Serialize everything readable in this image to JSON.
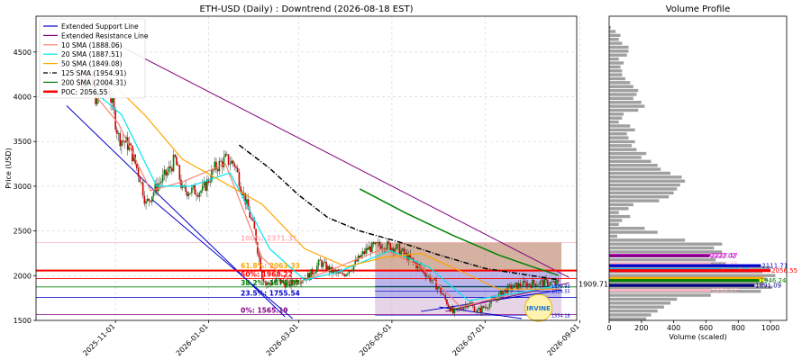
{
  "chart_data": [
    {
      "type": "candlestick",
      "title": "ETH-USD (Daily) : Downtrend (2026-08-18 EST)",
      "ylabel": "Price (USD)",
      "xlabel": "",
      "ylim": [
        1500,
        4900
      ],
      "xlim": [
        "2025-09-10",
        "2026-08-30"
      ],
      "grid": true,
      "yticks": [
        1500,
        2000,
        2500,
        3000,
        3500,
        4000,
        4500
      ],
      "xticks": [
        {
          "date": "2025-11-01",
          "label": "2025-11-01"
        },
        {
          "date": "2026-01-01",
          "label": "2026-01-01"
        },
        {
          "date": "2026-03-01",
          "label": "2026-03-01"
        },
        {
          "date": "2026-05-01",
          "label": "2026-05-01"
        },
        {
          "date": "2026-07-01",
          "label": "2026-07-01"
        },
        {
          "date": "2026-09-01",
          "label": "2026-09-01"
        }
      ],
      "legend_position": "top-left",
      "legend": [
        {
          "label": "Extended Support Line",
          "color": "#0000cc",
          "style": "solid"
        },
        {
          "label": "Extended Resistance Line",
          "color": "#800080",
          "style": "solid"
        },
        {
          "label": "10 SMA (1888.06)",
          "color": "#fa8072",
          "style": "solid"
        },
        {
          "label": "20 SMA (1887.51)",
          "color": "#00e5ee",
          "style": "solid"
        },
        {
          "label": "50 SMA (1849.08)",
          "color": "#ffa500",
          "style": "solid"
        },
        {
          "label": "125 SMA (1954.91)",
          "color": "#000000",
          "style": "dashdot"
        },
        {
          "label": "200 SMA (2004.31)",
          "color": "#008000",
          "style": "solid"
        },
        {
          "label": "POC: 2056.55",
          "color": "#ff0000",
          "style": "thick"
        }
      ],
      "price_path": [
        [
          "2025-10-05",
          4350
        ],
        [
          "2025-10-10",
          4150
        ],
        [
          "2025-10-14",
          4250
        ],
        [
          "2025-10-20",
          3950
        ],
        [
          "2025-10-27",
          4150
        ],
        [
          "2025-11-03",
          3550
        ],
        [
          "2025-11-10",
          3450
        ],
        [
          "2025-11-17",
          3100
        ],
        [
          "2025-11-21",
          2800
        ],
        [
          "2025-11-28",
          3000
        ],
        [
          "2025-12-05",
          3150
        ],
        [
          "2025-12-10",
          3300
        ],
        [
          "2025-12-15",
          2950
        ],
        [
          "2025-12-22",
          2950
        ],
        [
          "2025-12-28",
          2950
        ],
        [
          "2026-01-05",
          3200
        ],
        [
          "2026-01-12",
          3300
        ],
        [
          "2026-01-18",
          3250
        ],
        [
          "2026-01-24",
          2900
        ],
        [
          "2026-01-31",
          2500
        ],
        [
          "2026-02-05",
          2000
        ],
        [
          "2026-02-08",
          1900
        ],
        [
          "2026-02-15",
          1950
        ],
        [
          "2026-02-22",
          1900
        ],
        [
          "2026-02-28",
          1950
        ],
        [
          "2026-03-08",
          2000
        ],
        [
          "2026-03-15",
          2150
        ],
        [
          "2026-03-22",
          2050
        ],
        [
          "2026-03-29",
          2000
        ],
        [
          "2026-04-05",
          2100
        ],
        [
          "2026-04-15",
          2300
        ],
        [
          "2026-04-25",
          2350
        ],
        [
          "2026-05-05",
          2300
        ],
        [
          "2026-05-15",
          2150
        ],
        [
          "2026-05-22",
          2050
        ],
        [
          "2026-06-01",
          1850
        ],
        [
          "2026-06-10",
          1580
        ],
        [
          "2026-06-20",
          1700
        ],
        [
          "2026-06-26",
          1600
        ],
        [
          "2026-07-05",
          1700
        ],
        [
          "2026-07-15",
          1850
        ],
        [
          "2026-07-25",
          1900
        ],
        [
          "2026-08-05",
          1920
        ],
        [
          "2026-08-18",
          1910
        ]
      ],
      "sma_paths": {
        "sma10": [
          [
            "2025-10-05",
            4300
          ],
          [
            "2025-11-03",
            3700
          ],
          [
            "2025-11-24",
            2950
          ],
          [
            "2025-12-15",
            3050
          ],
          [
            "2026-01-12",
            3250
          ],
          [
            "2026-02-05",
            2200
          ],
          [
            "2026-02-25",
            1900
          ],
          [
            "2026-03-20",
            2050
          ],
          [
            "2026-04-25",
            2300
          ],
          [
            "2026-05-20",
            2100
          ],
          [
            "2026-06-15",
            1650
          ],
          [
            "2026-07-15",
            1780
          ],
          [
            "2026-08-18",
            1888
          ]
        ],
        "sma20": [
          [
            "2025-10-05",
            4250
          ],
          [
            "2025-11-05",
            3800
          ],
          [
            "2025-11-28",
            3000
          ],
          [
            "2025-12-20",
            3000
          ],
          [
            "2026-01-15",
            3150
          ],
          [
            "2026-02-10",
            2300
          ],
          [
            "2026-03-05",
            1950
          ],
          [
            "2026-03-28",
            2050
          ],
          [
            "2026-04-30",
            2280
          ],
          [
            "2026-05-25",
            2100
          ],
          [
            "2026-06-20",
            1720
          ],
          [
            "2026-07-20",
            1800
          ],
          [
            "2026-08-18",
            1887
          ]
        ],
        "sma50": [
          [
            "2025-10-30",
            4150
          ],
          [
            "2025-11-20",
            3800
          ],
          [
            "2025-12-15",
            3300
          ],
          [
            "2026-01-10",
            3050
          ],
          [
            "2026-02-05",
            2800
          ],
          [
            "2026-03-05",
            2300
          ],
          [
            "2026-04-01",
            2100
          ],
          [
            "2026-04-25",
            2200
          ],
          [
            "2026-05-20",
            2250
          ],
          [
            "2026-06-15",
            2050
          ],
          [
            "2026-07-10",
            1850
          ],
          [
            "2026-08-18",
            1849
          ]
        ],
        "sma125": [
          [
            "2026-01-21",
            3460
          ],
          [
            "2026-02-10",
            3200
          ],
          [
            "2026-03-01",
            2900
          ],
          [
            "2026-03-20",
            2650
          ],
          [
            "2026-04-10",
            2500
          ],
          [
            "2026-05-05",
            2380
          ],
          [
            "2026-06-01",
            2230
          ],
          [
            "2026-07-01",
            2080
          ],
          [
            "2026-08-18",
            1955
          ]
        ],
        "sma200": [
          [
            "2026-04-10",
            2970
          ],
          [
            "2026-05-10",
            2700
          ],
          [
            "2026-06-10",
            2450
          ],
          [
            "2026-07-10",
            2230
          ],
          [
            "2026-08-01",
            2100
          ],
          [
            "2026-08-18",
            2004
          ]
        ]
      },
      "support_lines": [
        {
          "from": [
            "2025-09-30",
            3900
          ],
          "to": [
            "2026-02-20",
            1540
          ]
        },
        {
          "from": [
            "2025-11-25",
            2850
          ],
          "to": [
            "2026-02-25",
            1520
          ]
        },
        {
          "from": [
            "2026-05-20",
            1600
          ],
          "to": [
            "2026-08-20",
            1840
          ]
        },
        {
          "from": [
            "2026-06-01",
            1650
          ],
          "to": [
            "2026-07-25",
            1520
          ]
        }
      ],
      "resistance_lines": [
        {
          "from": [
            "2025-10-20",
            4700
          ],
          "to": [
            "2026-08-25",
            1980
          ]
        },
        {
          "from": [
            "2026-06-05",
            1600
          ],
          "to": [
            "2026-08-25",
            1920
          ]
        }
      ],
      "poc": 2056.55,
      "current_price": {
        "value": 1909.71,
        "label": "1909.71"
      },
      "horizontal_levels": [
        {
          "value": 1879.93,
          "label": "1879.93",
          "color": "#0000cc"
        },
        {
          "value": 1824.55,
          "label": "1824.55",
          "color": "#0000cc"
        },
        {
          "value": 1554.18,
          "label": "1554.18",
          "color": "#0000cc"
        }
      ],
      "fibonacci": [
        {
          "pct": "100%",
          "value": 2371.31,
          "label": "100%: 2371.31",
          "color": "#ffb6c1"
        },
        {
          "pct": "61.8%",
          "value": 2063.33,
          "label": "61.8%: 2063.33",
          "color": "#ffa500"
        },
        {
          "pct": "50%",
          "value": 1968.22,
          "label": "50%: 1968.22",
          "color": "#ff0000"
        },
        {
          "pct": "38.2%",
          "value": 1874.07,
          "label": "38.2%: 1874.07",
          "color": "#008000"
        },
        {
          "pct": "23.5%",
          "value": 1755.54,
          "label": "23.5%: 1755.54",
          "color": "#0000cc"
        },
        {
          "pct": "0%",
          "value": 1565.19,
          "label": "0%: 1565.19",
          "color": "#800080"
        }
      ],
      "zones": [
        {
          "from": "2026-04-20",
          "to": "2026-08-20",
          "low": 2056.55,
          "high": 2371.31,
          "color": "#a0522d"
        },
        {
          "from": "2026-04-20",
          "to": "2026-08-20",
          "low": 1755.54,
          "high": 2056.55,
          "color": "#6a5acd"
        },
        {
          "from": "2026-04-20",
          "to": "2026-08-20",
          "low": 1565.19,
          "high": 1755.54,
          "color": "#c8a2c8"
        }
      ],
      "watermark": "IRVINE"
    },
    {
      "type": "bar",
      "orientation": "horizontal",
      "title": "Volume Profile",
      "xlabel": "Volume (scaled)",
      "xlim": [
        0,
        1100
      ],
      "xticks": [
        0,
        200,
        400,
        600,
        800,
        1000
      ],
      "ylim": [
        1500,
        4900
      ],
      "bin_size": 44,
      "bins_from": 1500,
      "volumes": [
        230,
        260,
        300,
        340,
        380,
        420,
        630,
        940,
        1010,
        960,
        980,
        1030,
        950,
        1000,
        720,
        660,
        620,
        700,
        650,
        700,
        470,
        50,
        300,
        220,
        60,
        80,
        130,
        60,
        120,
        150,
        310,
        370,
        400,
        420,
        440,
        470,
        450,
        380,
        320,
        300,
        260,
        200,
        230,
        170,
        140,
        160,
        120,
        110,
        160,
        130,
        60,
        80,
        90,
        180,
        220,
        200,
        150,
        170,
        180,
        150,
        130,
        100,
        80,
        80,
        70,
        90,
        60,
        110,
        120,
        120,
        80,
        60,
        70,
        40,
        10
      ],
      "labeled_bars": [
        {
          "price": 2132.35,
          "value": 630,
          "label": "2132.35",
          "color": "#ffb6c1"
        },
        {
          "price": 2227.17,
          "value": 630,
          "label": "2227.17",
          "color": "#ff00ff"
        },
        {
          "price": 2222.02,
          "value": 620,
          "label": "2222.02",
          "color": "#800080"
        },
        {
          "price": 2111.71,
          "value": 940,
          "label": "2111.71",
          "color": "#0000cc"
        },
        {
          "price": 2066.86,
          "value": 700,
          "label": "2066.86",
          "color": "#00bfff"
        },
        {
          "price": 2056.55,
          "value": 1000,
          "label": "2056.55",
          "color": "#ff0000"
        },
        {
          "price": 1970.0,
          "value": 960,
          "label": "",
          "color": "#ffa500"
        },
        {
          "price": 1948.0,
          "value": 960,
          "label": "",
          "color": "#ffff00"
        },
        {
          "price": 1946.24,
          "value": 930,
          "label": "1946.24",
          "color": "#008000"
        },
        {
          "price": 1891.09,
          "value": 900,
          "label": "1891.09",
          "color": "#000080"
        },
        {
          "price": 1836.0,
          "value": 630,
          "label": "1836.07",
          "color": "#ffb6c1"
        }
      ]
    }
  ]
}
